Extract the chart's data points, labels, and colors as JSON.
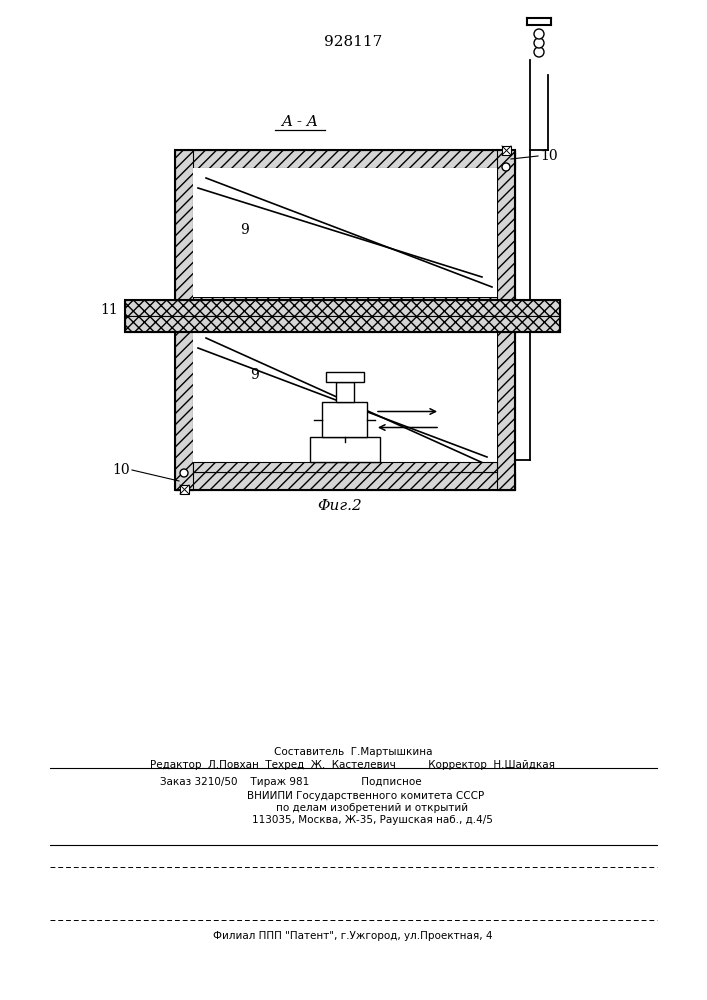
{
  "title": "928117",
  "label_aa": "A - A",
  "label_9_top": "9",
  "label_9_bottom": "9",
  "label_10_top": "10",
  "label_10_bottom": "10",
  "label_11": "11",
  "fig2_label": "Φиг.2",
  "footer_line1": "Составитель  Г.Мартышкина",
  "footer_line2": "Редактор  Л.Повхан  Техред  Ж.  Кастелевич          Корректор  Н.Шайдкая",
  "footer_line3": "Заказ 3210/50    Тираж 981                Подписное",
  "footer_line4": "        ВНИИПИ Государственного комитета СССР",
  "footer_line5": "            по делам изобретений и открытий",
  "footer_line6": "            113035, Москва, Ж-35, Раушская наб., д.4/5",
  "footer_line7": "Филиал ППП \"Патент\", г.Ужгород, ул.Проектная, 4"
}
